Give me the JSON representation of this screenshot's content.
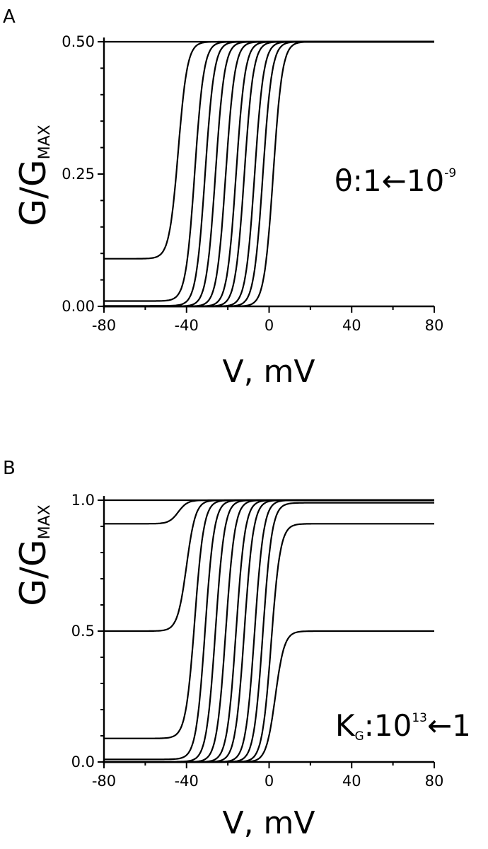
{
  "colors": {
    "line": "#000000",
    "background": "#ffffff"
  },
  "chart_data": [
    {
      "type": "line",
      "panel_label": "A",
      "xlabel": "V, mV",
      "ylabel_main": "G/G",
      "ylabel_sub": "MAX",
      "xlim": [
        -80,
        80
      ],
      "ylim": [
        0,
        0.5
      ],
      "xticks": [
        -80,
        -40,
        0,
        40,
        80
      ],
      "xtick_labels": [
        "-80",
        "-40",
        "0",
        "40",
        "80"
      ],
      "yticks": [
        0,
        0.25,
        0.5
      ],
      "ytick_labels": [
        "0.00",
        "0.25",
        "0.50"
      ],
      "grid": false,
      "annotation": {
        "parts": [
          "θ:1",
          "←",
          "10",
          "-9"
        ]
      },
      "series": [
        {
          "baseline": 0.5,
          "plateau": 0.5,
          "midpoint": -40,
          "slope": 2.2
        },
        {
          "baseline": 0.09,
          "plateau": 0.5,
          "midpoint": -44,
          "slope": 2.2
        },
        {
          "baseline": 0.01,
          "plateau": 0.5,
          "midpoint": -36,
          "slope": 2.2
        },
        {
          "baseline": 0.001,
          "plateau": 0.5,
          "midpoint": -31,
          "slope": 2.2
        },
        {
          "baseline": 0.0001,
          "plateau": 0.5,
          "midpoint": -26,
          "slope": 2.2
        },
        {
          "baseline": 0,
          "plateau": 0.5,
          "midpoint": -21,
          "slope": 2.2
        },
        {
          "baseline": 0,
          "plateau": 0.5,
          "midpoint": -16,
          "slope": 2.2
        },
        {
          "baseline": 0,
          "plateau": 0.5,
          "midpoint": -12,
          "slope": 2.2
        },
        {
          "baseline": 0,
          "plateau": 0.5,
          "midpoint": -7,
          "slope": 2.2
        },
        {
          "baseline": 0,
          "plateau": 0.5,
          "midpoint": -3,
          "slope": 2.2
        },
        {
          "baseline": 0,
          "plateau": 0.5,
          "midpoint": 2,
          "slope": 2.2
        }
      ]
    },
    {
      "type": "line",
      "panel_label": "B",
      "xlabel": "V, mV",
      "ylabel_main": "G/G",
      "ylabel_sub": "MAX",
      "xlim": [
        -80,
        80
      ],
      "ylim": [
        0,
        1
      ],
      "xticks": [
        -80,
        -40,
        0,
        40,
        80
      ],
      "xtick_labels": [
        "-80",
        "-40",
        "0",
        "40",
        "80"
      ],
      "yticks": [
        0,
        0.5,
        1
      ],
      "ytick_labels": [
        "0.0",
        "0.5",
        "1.0"
      ],
      "grid": false,
      "annotation": {
        "parts": [
          "K",
          "G",
          ":10",
          "13",
          "←",
          "1"
        ]
      },
      "series": [
        {
          "baseline": 1.0,
          "plateau": 1.0,
          "midpoint": -40,
          "slope": 2.2
        },
        {
          "baseline": 0.91,
          "plateau": 1.0,
          "midpoint": -44,
          "slope": 2.2
        },
        {
          "baseline": 0.5,
          "plateau": 1.0,
          "midpoint": -40,
          "slope": 2.2
        },
        {
          "baseline": 0.09,
          "plateau": 1.0,
          "midpoint": -36,
          "slope": 2.2
        },
        {
          "baseline": 0.01,
          "plateau": 1.0,
          "midpoint": -31,
          "slope": 2.2
        },
        {
          "baseline": 0.001,
          "plateau": 1.0,
          "midpoint": -26,
          "slope": 2.2
        },
        {
          "baseline": 0,
          "plateau": 1.0,
          "midpoint": -21,
          "slope": 2.2
        },
        {
          "baseline": 0,
          "plateau": 1.0,
          "midpoint": -16,
          "slope": 2.2
        },
        {
          "baseline": 0,
          "plateau": 1.0,
          "midpoint": -12,
          "slope": 2.2
        },
        {
          "baseline": 0,
          "plateau": 1.0,
          "midpoint": -7,
          "slope": 2.2
        },
        {
          "baseline": 0,
          "plateau": 0.99,
          "midpoint": -3,
          "slope": 2.2
        },
        {
          "baseline": 0,
          "plateau": 0.91,
          "midpoint": 1,
          "slope": 2.2
        },
        {
          "baseline": 0,
          "plateau": 0.5,
          "midpoint": 3,
          "slope": 2.2
        }
      ]
    }
  ]
}
